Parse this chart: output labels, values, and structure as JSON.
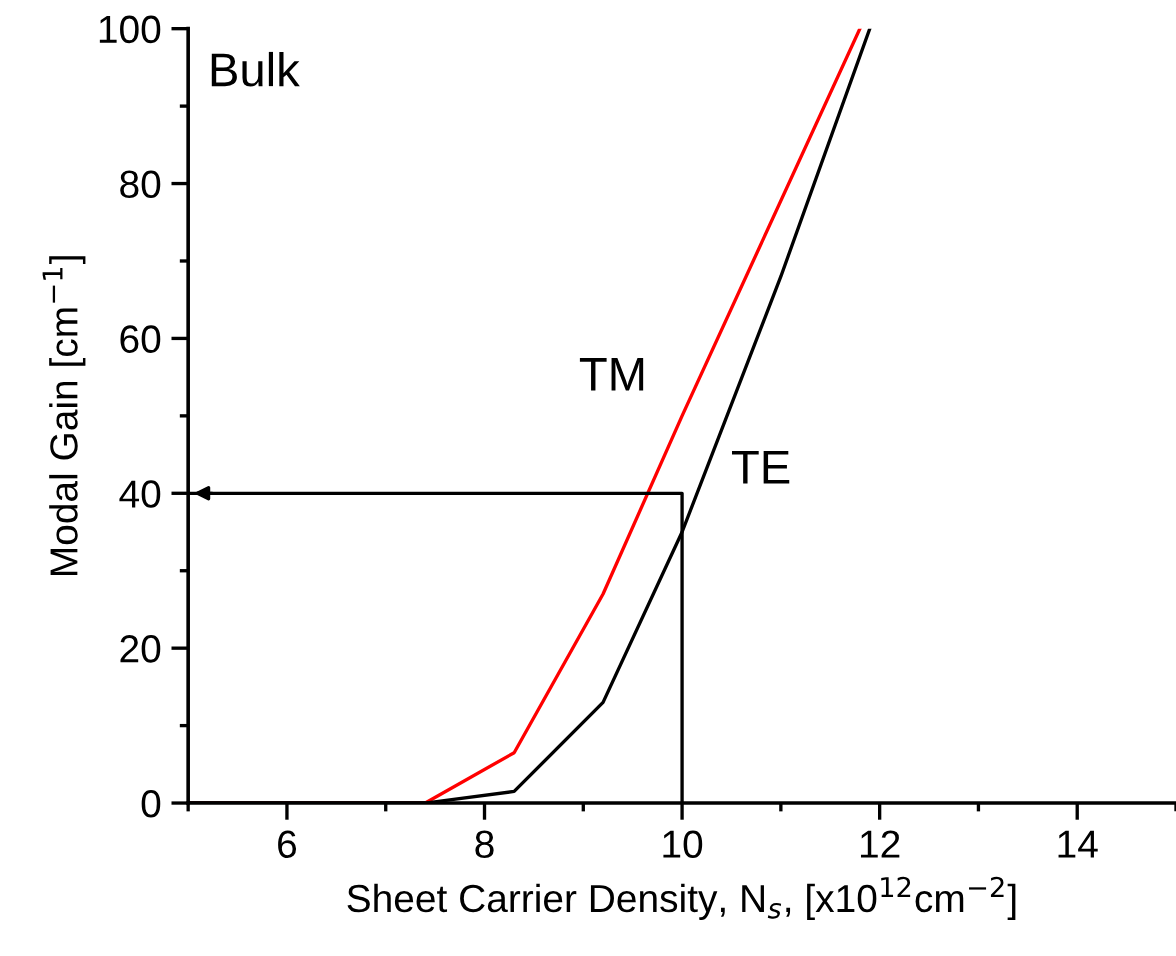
{
  "chart_data": {
    "type": "line",
    "xlabel": "Sheet Carrier Density, N$_{s}$, [x10$^{12}$cm$^{−2}$]",
    "ylabel": "Modal Gain [cm$^{−1}$]",
    "annotations": [
      "Bulk"
    ],
    "xlim": [
      5,
      15
    ],
    "ylim": [
      0,
      100
    ],
    "xticks": [
      {
        "value": 5,
        "label": null
      },
      6,
      {
        "value": 7,
        "label": null
      },
      8,
      {
        "value": 9,
        "label": null
      },
      10,
      {
        "value": 11,
        "label": null
      },
      12,
      {
        "value": 13,
        "label": null
      },
      14,
      {
        "value": 15,
        "label": null
      }
    ],
    "yticks": [
      0,
      {
        "value": 10,
        "label": null
      },
      20,
      {
        "value": 30,
        "label": null
      },
      40,
      {
        "value": 50,
        "label": null
      },
      60,
      {
        "value": 70,
        "label": null
      },
      80,
      {
        "value": 90,
        "label": null
      },
      100
    ],
    "grid": false,
    "legend": false,
    "marker": "none",
    "line_style": "solid",
    "series": [
      {
        "name": "TM",
        "color": "#ff0000",
        "x": [
          5,
          7.4,
          8.3,
          9.2,
          10,
          11.8
        ],
        "values": [
          0,
          0,
          6.5,
          27,
          50,
          100
        ]
      },
      {
        "name": "TE",
        "color": "#000000",
        "x": [
          5,
          7.4,
          8.3,
          9.2,
          10,
          11,
          11.9
        ],
        "values": [
          0,
          0,
          1.5,
          13,
          35,
          68,
          100
        ]
      },
      {
        "color": "#000000",
        "x": [
          10,
          10,
          5
        ],
        "values": [
          0,
          40,
          40
        ]
      }
    ]
  }
}
